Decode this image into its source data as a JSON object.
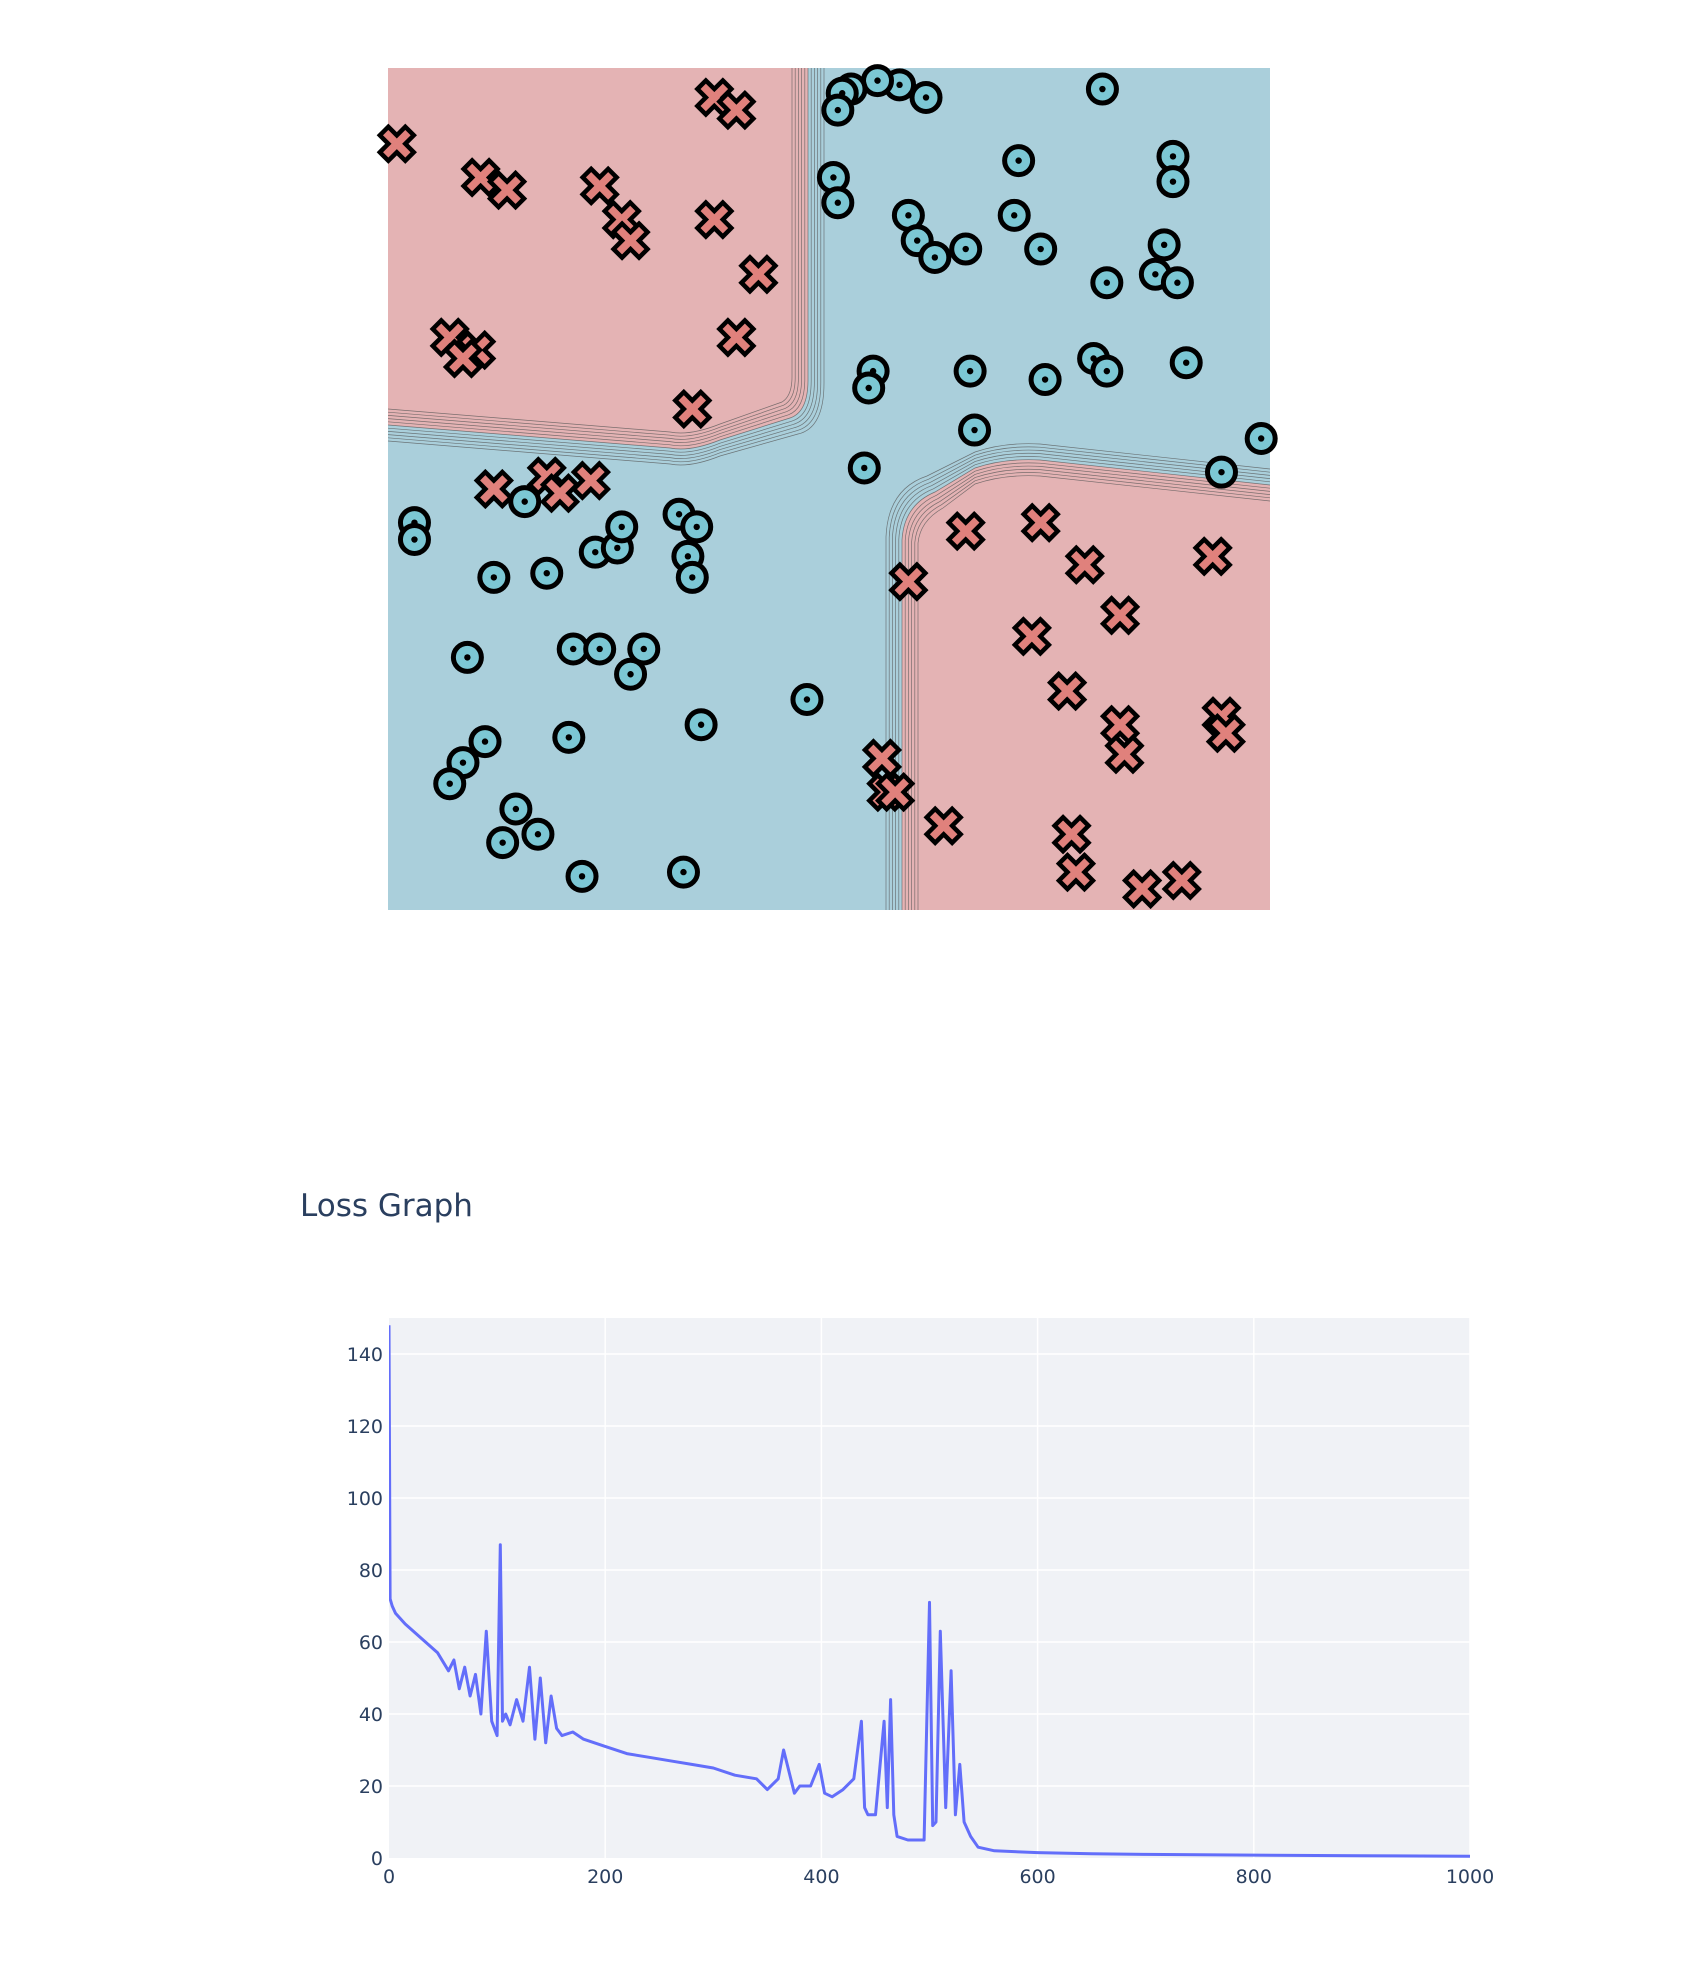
{
  "colors": {
    "class_a_region": "#e4b3b4",
    "class_b_region": "#aacfdb",
    "class_a_marker": "#e0817c",
    "class_b_marker": "#7cc7d4",
    "marker_outline": "#000000",
    "loss_line": "#636efa",
    "plot_bg": "#f0f2f6",
    "grid": "#ffffff",
    "tick_text": "#2a3f5f"
  },
  "icons": {
    "class_a": "x-marker",
    "class_b": "circle-dot-marker"
  },
  "loss_section": {
    "title": "Loss Graph"
  },
  "chart_data": [
    {
      "type": "scatter",
      "title": "",
      "xlim": [
        -1,
        1
      ],
      "ylim": [
        -1,
        1
      ],
      "grid": false,
      "background": "decision-boundary contour (XOR pattern)",
      "series": [
        {
          "marker": "x",
          "points": [
            [
              -0.98,
              0.82
            ],
            [
              -0.79,
              0.74
            ],
            [
              -0.73,
              0.71
            ],
            [
              -0.52,
              0.72
            ],
            [
              -0.47,
              0.64
            ],
            [
              -0.45,
              0.59
            ],
            [
              -0.26,
              0.93
            ],
            [
              -0.21,
              0.9
            ],
            [
              -0.26,
              0.64
            ],
            [
              -0.16,
              0.51
            ],
            [
              -0.21,
              0.36
            ],
            [
              -0.31,
              0.19
            ],
            [
              -0.86,
              0.36
            ],
            [
              -0.8,
              0.33
            ],
            [
              -0.83,
              0.31
            ],
            [
              -0.76,
              0.0
            ],
            [
              -0.64,
              0.03
            ],
            [
              -0.61,
              -0.01
            ],
            [
              -0.54,
              0.02
            ],
            [
              0.18,
              -0.22
            ],
            [
              0.31,
              -0.1
            ],
            [
              0.48,
              -0.08
            ],
            [
              0.58,
              -0.18
            ],
            [
              0.87,
              -0.16
            ],
            [
              0.46,
              -0.35
            ],
            [
              0.54,
              -0.48
            ],
            [
              0.66,
              -0.3
            ],
            [
              0.12,
              -0.64
            ],
            [
              0.89,
              -0.54
            ],
            [
              0.9,
              -0.58
            ],
            [
              0.66,
              -0.56
            ],
            [
              0.67,
              -0.63
            ],
            [
              0.13,
              -0.72
            ],
            [
              0.15,
              -0.72
            ],
            [
              0.26,
              -0.8
            ],
            [
              0.55,
              -0.82
            ],
            [
              0.56,
              -0.91
            ],
            [
              0.71,
              -0.95
            ],
            [
              0.8,
              -0.93
            ]
          ]
        },
        {
          "marker": "o",
          "points": [
            [
              0.16,
              0.96
            ],
            [
              0.11,
              0.97
            ],
            [
              0.05,
              0.95
            ],
            [
              0.03,
              0.94
            ],
            [
              0.02,
              0.9
            ],
            [
              0.22,
              0.93
            ],
            [
              0.62,
              0.95
            ],
            [
              0.43,
              0.78
            ],
            [
              0.78,
              0.79
            ],
            [
              0.78,
              0.73
            ],
            [
              0.01,
              0.74
            ],
            [
              0.02,
              0.68
            ],
            [
              0.18,
              0.65
            ],
            [
              0.42,
              0.65
            ],
            [
              0.2,
              0.59
            ],
            [
              0.24,
              0.55
            ],
            [
              0.31,
              0.57
            ],
            [
              0.48,
              0.57
            ],
            [
              0.63,
              0.49
            ],
            [
              0.76,
              0.58
            ],
            [
              0.74,
              0.51
            ],
            [
              0.79,
              0.49
            ],
            [
              0.6,
              0.31
            ],
            [
              0.63,
              0.28
            ],
            [
              0.81,
              0.3
            ],
            [
              0.1,
              0.28
            ],
            [
              0.09,
              0.24
            ],
            [
              0.32,
              0.28
            ],
            [
              0.49,
              0.26
            ],
            [
              0.33,
              0.14
            ],
            [
              0.98,
              0.12
            ],
            [
              0.89,
              0.04
            ],
            [
              0.08,
              0.05
            ],
            [
              -0.94,
              -0.08
            ],
            [
              -0.94,
              -0.12
            ],
            [
              -0.69,
              -0.03
            ],
            [
              -0.53,
              -0.15
            ],
            [
              -0.48,
              -0.14
            ],
            [
              -0.47,
              -0.09
            ],
            [
              -0.34,
              -0.06
            ],
            [
              -0.3,
              -0.09
            ],
            [
              -0.32,
              -0.16
            ],
            [
              -0.76,
              -0.21
            ],
            [
              -0.64,
              -0.2
            ],
            [
              -0.31,
              -0.21
            ],
            [
              -0.82,
              -0.4
            ],
            [
              -0.58,
              -0.38
            ],
            [
              -0.42,
              -0.38
            ],
            [
              -0.52,
              -0.38
            ],
            [
              -0.45,
              -0.44
            ],
            [
              -0.78,
              -0.6
            ],
            [
              -0.83,
              -0.65
            ],
            [
              -0.86,
              -0.7
            ],
            [
              -0.71,
              -0.76
            ],
            [
              -0.74,
              -0.84
            ],
            [
              -0.66,
              -0.82
            ],
            [
              -0.59,
              -0.59
            ],
            [
              -0.56,
              -0.92
            ],
            [
              -0.29,
              -0.56
            ],
            [
              -0.33,
              -0.91
            ],
            [
              -0.05,
              -0.5
            ]
          ]
        }
      ]
    },
    {
      "type": "line",
      "title": "Loss Graph",
      "xlabel": "",
      "ylabel": "",
      "xlim": [
        0,
        1000
      ],
      "ylim": [
        0,
        150
      ],
      "grid": true,
      "xticks": [
        0,
        200,
        400,
        600,
        800,
        1000
      ],
      "yticks": [
        0,
        20,
        40,
        60,
        80,
        100,
        120,
        140
      ],
      "x": [
        0,
        1,
        3,
        6,
        15,
        30,
        45,
        55,
        60,
        65,
        70,
        75,
        80,
        85,
        90,
        95,
        100,
        103,
        105,
        108,
        112,
        118,
        124,
        130,
        135,
        140,
        145,
        150,
        155,
        160,
        170,
        180,
        200,
        220,
        240,
        260,
        280,
        300,
        320,
        340,
        350,
        360,
        365,
        370,
        375,
        380,
        390,
        398,
        403,
        410,
        420,
        430,
        437,
        440,
        443,
        450,
        458,
        461,
        464,
        467,
        470,
        480,
        495,
        500,
        503,
        506,
        510,
        515,
        520,
        524,
        528,
        532,
        538,
        545,
        560,
        600,
        650,
        700,
        800,
        900,
        1000
      ],
      "y": [
        148,
        72,
        70,
        68,
        65,
        61,
        57,
        52,
        55,
        47,
        53,
        45,
        51,
        40,
        63,
        38,
        34,
        87,
        38,
        40,
        37,
        44,
        38,
        53,
        33,
        50,
        32,
        45,
        36,
        34,
        35,
        33,
        31,
        29,
        28,
        27,
        26,
        25,
        23,
        22,
        19,
        22,
        30,
        24,
        18,
        20,
        20,
        26,
        18,
        17,
        19,
        22,
        38,
        14,
        12,
        12,
        38,
        14,
        44,
        12,
        6,
        5,
        5,
        71,
        9,
        10,
        63,
        14,
        52,
        12,
        26,
        10,
        6,
        3,
        2,
        1.5,
        1.2,
        1.0,
        0.8,
        0.6,
        0.5
      ]
    }
  ]
}
